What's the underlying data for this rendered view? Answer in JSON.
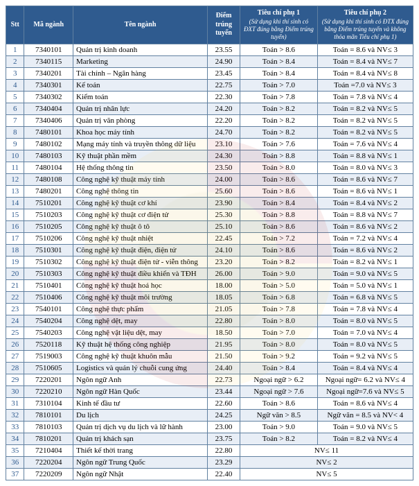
{
  "headers": {
    "stt": "Stt",
    "code": "Mã ngành",
    "name": "Tên ngành",
    "score": "Điểm trúng tuyển",
    "p1": "Tiêu chí phụ 1",
    "p1_sub": "(Sử dụng khi thí sinh có ĐXT đúng bằng Điểm trúng tuyển)",
    "p2": "Tiêu chí phụ 2",
    "p2_sub": "(Sử dụng khi thí sinh có ĐTX đúng bằng Điểm trúng tuyển và không thỏa mãn Tiêu chí phụ 1)"
  },
  "rows": [
    {
      "stt": "1",
      "code": "7340101",
      "name": "Quản trị kinh doanh",
      "score": "23.55",
      "p1": "Toán > 8.6",
      "p2": "Toán = 8.6 và NV≤ 3"
    },
    {
      "stt": "2",
      "code": "7340115",
      "name": "Marketing",
      "score": "24.90",
      "p1": "Toán > 8.4",
      "p2": "Toán = 8.4 và NV≤ 7"
    },
    {
      "stt": "3",
      "code": "7340201",
      "name": "Tài chính – Ngân hàng",
      "score": "23.45",
      "p1": "Toán > 8.4",
      "p2": "Toán = 8.4 và NV≤ 8"
    },
    {
      "stt": "4",
      "code": "7340301",
      "name": "Kế toán",
      "score": "22.75",
      "p1": "Toán > 7.0",
      "p2": "Toán =7.0 và NV≤ 3"
    },
    {
      "stt": "5",
      "code": "7340302",
      "name": "Kiểm toán",
      "score": "22.30",
      "p1": "Toán > 7.8",
      "p2": "Toán = 7.8 và NV≤ 4"
    },
    {
      "stt": "6",
      "code": "7340404",
      "name": "Quản trị nhân lực",
      "score": "24.20",
      "p1": "Toán > 8.2",
      "p2": "Toán = 8.2 và NV≤ 5"
    },
    {
      "stt": "7",
      "code": "7340406",
      "name": "Quản trị văn phòng",
      "score": "22.20",
      "p1": "Toán > 8.2",
      "p2": "Toán = 8.2 và NV≤ 5"
    },
    {
      "stt": "8",
      "code": "7480101",
      "name": "Khoa học máy tính",
      "score": "24.70",
      "p1": "Toán > 8.2",
      "p2": "Toán = 8.2 và NV≤ 5"
    },
    {
      "stt": "9",
      "code": "7480102",
      "name": "Mạng máy tính và truyền thông dữ liệu",
      "score": "23.10",
      "p1": "Toán > 7.6",
      "p2": "Toán = 7.6 và NV≤ 4"
    },
    {
      "stt": "10",
      "code": "7480103",
      "name": "Kỹ thuật phần mềm",
      "score": "24.30",
      "p1": "Toán > 8.8",
      "p2": "Toán = 8.8 và NV≤ 1"
    },
    {
      "stt": "11",
      "code": "7480104",
      "name": "Hệ thống thông tin",
      "score": "23.50",
      "p1": "Toán > 8.0",
      "p2": "Toán = 8.0 và NV≤ 3"
    },
    {
      "stt": "12",
      "code": "7480108",
      "name": "Công nghệ kỹ thuật máy tính",
      "score": "24.00",
      "p1": "Toán > 8.6",
      "p2": "Toán = 8.6 và NV≤ 7"
    },
    {
      "stt": "13",
      "code": "7480201",
      "name": "Công nghệ thông tin",
      "score": "25.60",
      "p1": "Toán > 8.6",
      "p2": "Toán = 8.6 và NV≤ 1"
    },
    {
      "stt": "14",
      "code": "7510201",
      "name": "Công nghệ kỹ thuật cơ khí",
      "score": "23.90",
      "p1": "Toán > 8.4",
      "p2": "Toán = 8.4 và NV≤ 2"
    },
    {
      "stt": "15",
      "code": "7510203",
      "name": "Công nghệ kỹ thuật cơ điện tử",
      "score": "25.30",
      "p1": "Toán > 8.8",
      "p2": "Toán = 8.8 và NV≤ 7"
    },
    {
      "stt": "16",
      "code": "7510205",
      "name": "Công nghệ kỹ thuật ô tô",
      "score": "25.10",
      "p1": "Toán > 8.6",
      "p2": "Toán = 8.6 và NV≤ 2"
    },
    {
      "stt": "17",
      "code": "7510206",
      "name": "Công nghệ kỹ thuật nhiệt",
      "score": "22.45",
      "p1": "Toán > 7.2",
      "p2": "Toán = 7.2 và NV≤ 4"
    },
    {
      "stt": "18",
      "code": "7510301",
      "name": "Công nghệ kỹ thuật điện, điện tử",
      "score": "24.10",
      "p1": "Toán > 8.6",
      "p2": "Toán = 8.6 và NV≤ 2"
    },
    {
      "stt": "19",
      "code": "7510302",
      "name": "Công nghệ kỹ thuật điện tử - viễn thông",
      "score": "23.20",
      "p1": "Toán > 8.2",
      "p2": "Toán = 8.2 và NV≤ 1"
    },
    {
      "stt": "20",
      "code": "7510303",
      "name": "Công nghệ kỹ thuật điều khiển và TĐH",
      "score": "26.00",
      "p1": "Toán > 9.0",
      "p2": "Toán = 9.0 và NV≤ 5"
    },
    {
      "stt": "21",
      "code": "7510401",
      "name": "Công nghệ kỹ thuật hoá học",
      "score": "18.00",
      "p1": "Toán > 5.0",
      "p2": "Toán = 5.0 và NV≤ 1"
    },
    {
      "stt": "22",
      "code": "7510406",
      "name": "Công nghệ kỹ thuật môi trường",
      "score": "18.05",
      "p1": "Toán > 6.8",
      "p2": "Toán = 6.8 và NV≤ 5"
    },
    {
      "stt": "23",
      "code": "7540101",
      "name": "Công nghệ thực phẩm",
      "score": "21.05",
      "p1": "Toán > 7.8",
      "p2": "Toán = 7.8 và NV≤ 4"
    },
    {
      "stt": "24",
      "code": "7540204",
      "name": "Công nghệ dệt, may",
      "score": "22.80",
      "p1": "Toán > 8.0",
      "p2": "Toán = 8.0 và NV≤ 5"
    },
    {
      "stt": "25",
      "code": "7540203",
      "name": "Công nghệ vật liệu dệt, may",
      "score": "18.50",
      "p1": "Toán > 7.0",
      "p2": "Toán = 7.0 và NV≤ 4"
    },
    {
      "stt": "26",
      "code": "7520118",
      "name": "Kỹ thuật hệ thống công nghiệp",
      "score": "21.95",
      "p1": "Toán > 8.0",
      "p2": "Toán = 8.0 và NV≤ 5"
    },
    {
      "stt": "27",
      "code": "7519003",
      "name": "Công nghệ kỹ thuật khuôn mẫu",
      "score": "21.50",
      "p1": "Toán > 9.2",
      "p2": "Toán = 9.2 và NV≤ 5"
    },
    {
      "stt": "28",
      "code": "7510605",
      "name": "Logistics và quản lý chuỗi cung ứng",
      "score": "24.40",
      "p1": "Toán > 8.4",
      "p2": "Toán = 8.4 và NV≤ 4"
    },
    {
      "stt": "29",
      "code": "7220201",
      "name": "Ngôn ngữ Anh",
      "score": "22.73",
      "p1": "Ngoại ngữ > 6.2",
      "p2": "Ngoại ngữ= 6.2 và NV≤ 4"
    },
    {
      "stt": "30",
      "code": "7220210",
      "name": "Ngôn ngữ Hàn Quốc",
      "score": "23.44",
      "p1": "Ngoại ngữ > 7.6",
      "p2": "Ngoại ngữ=7.6 và NV≤ 5"
    },
    {
      "stt": "31",
      "code": "7310104",
      "name": "Kinh tế đầu tư",
      "score": "22.60",
      "p1": "Toán > 8.6",
      "p2": "Toán = 8.6 và NV≤ 4"
    },
    {
      "stt": "32",
      "code": "7810101",
      "name": "Du lịch",
      "score": "24.25",
      "p1": "Ngữ văn > 8.5",
      "p2": "Ngữ văn = 8.5 và NV< 4"
    },
    {
      "stt": "33",
      "code": "7810103",
      "name": "Quản trị dịch vụ du lịch và lữ hành",
      "score": "23.00",
      "p1": "Toán > 9.0",
      "p2": "Toán = 9.0 và NV≤ 5"
    },
    {
      "stt": "34",
      "code": "7810201",
      "name": "Quản trị khách sạn",
      "score": "23.75",
      "p1": "Toán > 8.2",
      "p2": "Toán = 8.2 và NV≤ 4"
    },
    {
      "stt": "35",
      "code": "7210404",
      "name": "Thiết kế thời trang",
      "score": "22.80",
      "merged": "NV≤ 11"
    },
    {
      "stt": "36",
      "code": "7220204",
      "name": "Ngôn ngữ Trung Quốc",
      "score": "23.29",
      "merged": "NV≤ 2"
    },
    {
      "stt": "37",
      "code": "7220209",
      "name": "Ngôn ngữ Nhật",
      "score": "22.40",
      "merged": "NV≤ 5"
    }
  ]
}
